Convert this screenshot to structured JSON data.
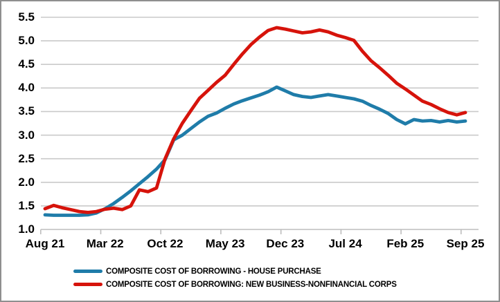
{
  "chart_data": {
    "type": "line",
    "title": "",
    "xlabel": "",
    "ylabel": "",
    "ylim": [
      1.0,
      5.5
    ],
    "ytick_step": 0.5,
    "grid": true,
    "legend_position": "bottom-left",
    "y_tick_labels": [
      "5.5",
      "5.0",
      "4.5",
      "4.0",
      "3.5",
      "3.0",
      "2.5",
      "2.0",
      "1.5",
      "1.0"
    ],
    "x_tick_labels": [
      "Aug 21",
      "Mar 22",
      "Oct 22",
      "May 23",
      "Dec 23",
      "Jul 24",
      "Feb 25",
      "Sep 25"
    ],
    "x_months": [
      "Aug 21",
      "Sep 21",
      "Oct 21",
      "Nov 21",
      "Dec 21",
      "Jan 22",
      "Feb 22",
      "Mar 22",
      "Apr 22",
      "May 22",
      "Jun 22",
      "Jul 22",
      "Aug 22",
      "Sep 22",
      "Oct 22",
      "Nov 22",
      "Dec 22",
      "Jan 23",
      "Feb 23",
      "Mar 23",
      "Apr 23",
      "May 23",
      "Jun 23",
      "Jul 23",
      "Aug 23",
      "Sep 23",
      "Oct 23",
      "Nov 23",
      "Dec 23",
      "Jan 24",
      "Feb 24",
      "Mar 24",
      "Apr 24",
      "May 24",
      "Jun 24",
      "Jul 24",
      "Aug 24",
      "Sep 24",
      "Oct 24",
      "Nov 24",
      "Dec 24",
      "Jan 25",
      "Feb 25",
      "Mar 25",
      "Apr 25",
      "May 25",
      "Jun 25",
      "Jul 25",
      "Aug 25",
      "Sep 25"
    ],
    "series": [
      {
        "name": "COMPOSITE COST OF BORROWING - HOUSE PURCHASE",
        "color": "#1F7CA9",
        "values": [
          1.31,
          1.3,
          1.3,
          1.3,
          1.3,
          1.31,
          1.35,
          1.44,
          1.55,
          1.68,
          1.82,
          1.97,
          2.12,
          2.28,
          2.48,
          2.9,
          3.0,
          3.14,
          3.28,
          3.4,
          3.47,
          3.57,
          3.66,
          3.73,
          3.79,
          3.85,
          3.92,
          4.02,
          3.94,
          3.86,
          3.82,
          3.8,
          3.83,
          3.86,
          3.83,
          3.8,
          3.77,
          3.72,
          3.63,
          3.55,
          3.46,
          3.33,
          3.24,
          3.33,
          3.3,
          3.31,
          3.28,
          3.31,
          3.28,
          3.3
        ]
      },
      {
        "name": "COMPOSITE COST OF BORROWING: NEW BUSINESS-NONFINANCIAL CORPS",
        "color": "#D6130B",
        "values": [
          1.44,
          1.51,
          1.46,
          1.42,
          1.38,
          1.36,
          1.38,
          1.43,
          1.45,
          1.42,
          1.5,
          1.84,
          1.8,
          1.88,
          2.5,
          2.92,
          3.25,
          3.52,
          3.78,
          3.95,
          4.12,
          4.27,
          4.5,
          4.72,
          4.92,
          5.08,
          5.22,
          5.28,
          5.25,
          5.21,
          5.17,
          5.19,
          5.23,
          5.19,
          5.12,
          5.07,
          5.01,
          4.78,
          4.58,
          4.43,
          4.27,
          4.1,
          3.98,
          3.85,
          3.72,
          3.65,
          3.56,
          3.48,
          3.43,
          3.48
        ]
      }
    ],
    "colors": {
      "gridline": "#C9C9C9",
      "axis": "#BDBDBD",
      "tick": "#BDBDBD",
      "label": "#000000",
      "border": "#8F8F8F",
      "background": "#FFFFFF"
    }
  }
}
